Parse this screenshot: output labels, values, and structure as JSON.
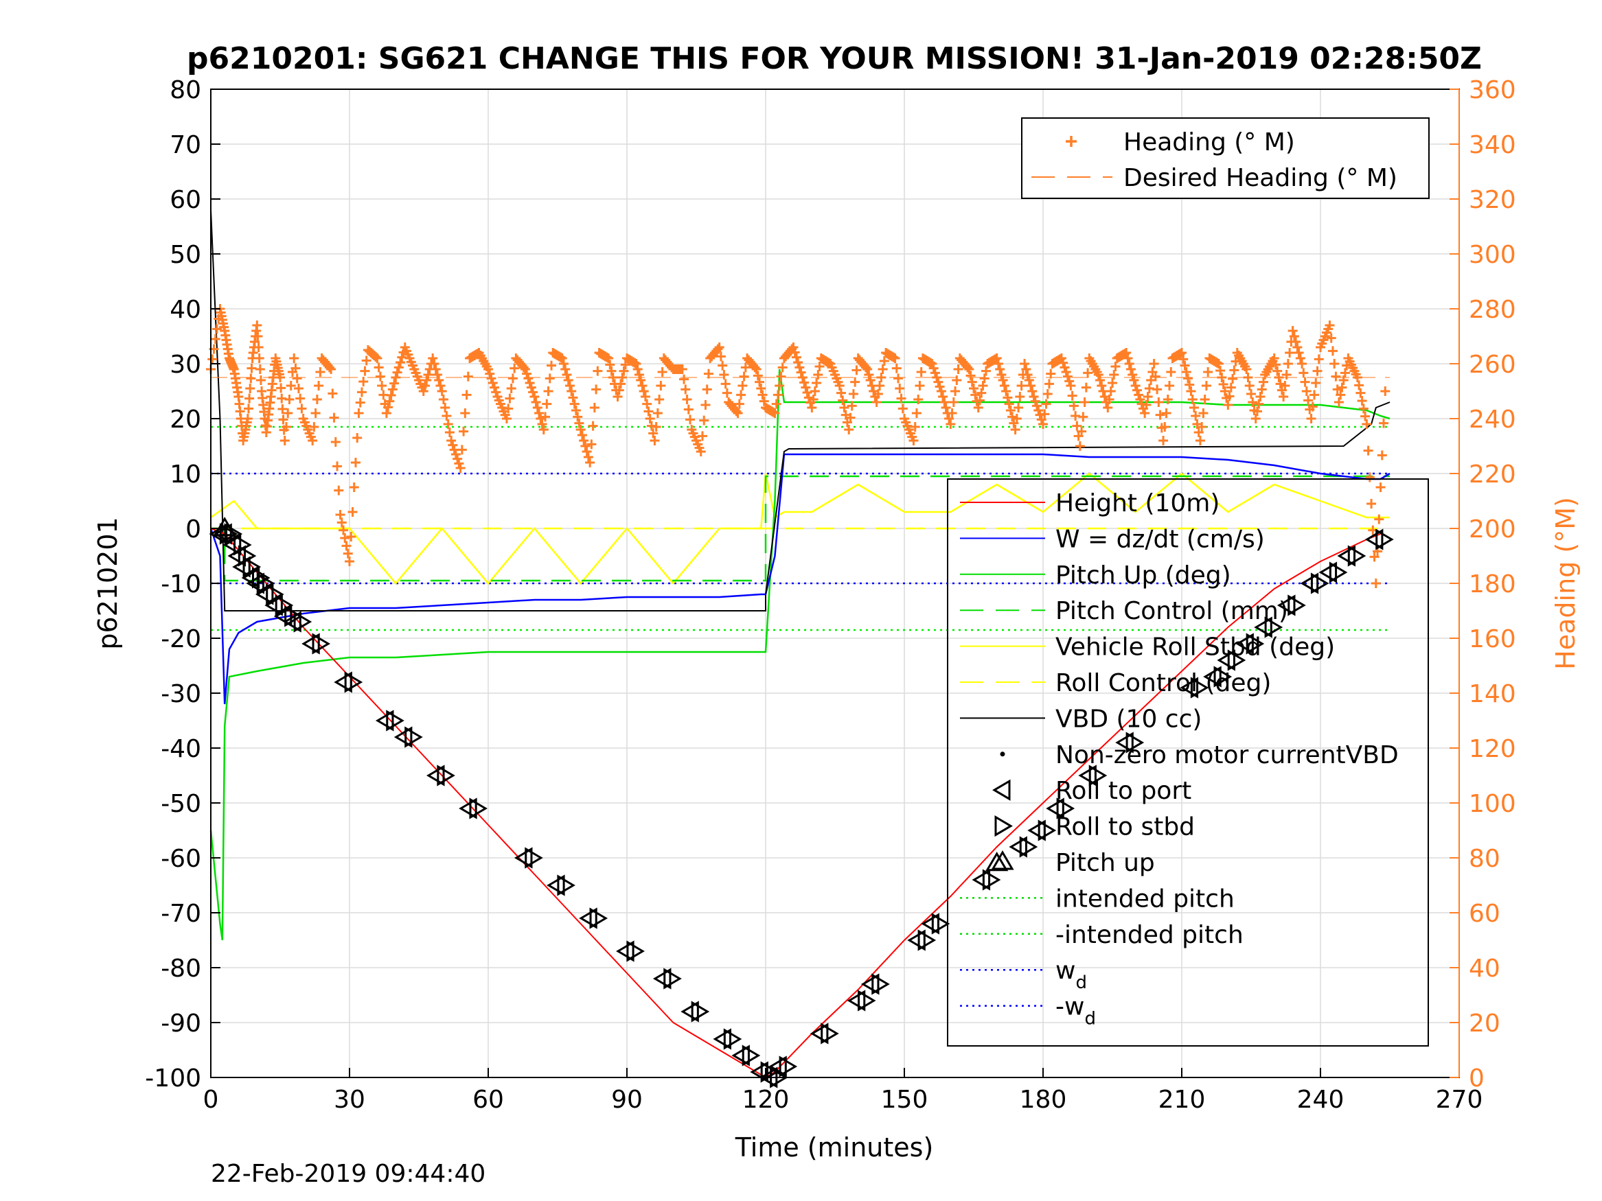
{
  "chart_data": {
    "type": "line",
    "title": "p6210201: SG621 CHANGE THIS FOR YOUR MISSION! 31-Jan-2019 02:28:50Z",
    "xlabel": "Time (minutes)",
    "ylabel": "p6210201",
    "ylabel_right": "Heading (°M)",
    "xlim": [
      0,
      270
    ],
    "ylim": [
      -100,
      80
    ],
    "ylim_right": [
      0,
      360
    ],
    "x_ticks": [
      "0",
      "30",
      "60",
      "90",
      "120",
      "150",
      "180",
      "210",
      "240",
      "270"
    ],
    "y_ticks": [
      "-100",
      "-90",
      "-80",
      "-70",
      "-60",
      "-50",
      "-40",
      "-30",
      "-20",
      "-10",
      "0",
      "10",
      "20",
      "30",
      "40",
      "50",
      "60",
      "70",
      "80"
    ],
    "y_ticks_right": [
      "0",
      "20",
      "40",
      "60",
      "80",
      "100",
      "120",
      "140",
      "160",
      "180",
      "200",
      "220",
      "240",
      "260",
      "280",
      "300",
      "320",
      "340",
      "360"
    ],
    "grid": true,
    "colors": {
      "height": "#ff0000",
      "w": "#0000ff",
      "pitch": "#00dd00",
      "roll": "#ffff00",
      "vbd": "#000000",
      "heading": "#ff7f27",
      "wd": "#0000ff"
    },
    "legend_heading": {
      "placement": "top-right",
      "entries": [
        {
          "label": "Heading (° M)",
          "color": "#ff7f27",
          "style": "plus"
        },
        {
          "label": "Desired Heading (° M)",
          "color": "#ff7f27",
          "style": "dash"
        }
      ]
    },
    "legend_main": {
      "placement": "right",
      "entries": [
        {
          "label": "Height (10m)",
          "color": "#ff0000",
          "style": "line"
        },
        {
          "label": "W = dz/dt (cm/s)",
          "color": "#0000ff",
          "style": "line"
        },
        {
          "label": "Pitch Up (deg)",
          "color": "#00dd00",
          "style": "line"
        },
        {
          "label": "Pitch Control (mm)",
          "color": "#00dd00",
          "style": "dash"
        },
        {
          "label": "Vehicle Roll Stbd (deg)",
          "color": "#ffff00",
          "style": "line"
        },
        {
          "label": "Roll Control (deg)",
          "color": "#ffff00",
          "style": "dash"
        },
        {
          "label": "VBD (10 cc)",
          "color": "#000000",
          "style": "line"
        },
        {
          "label": "Non-zero motor currentVBD",
          "color": "#000000",
          "style": "dot"
        },
        {
          "label": "Roll to port",
          "color": "#000000",
          "style": "tri-left"
        },
        {
          "label": "Roll to stbd",
          "color": "#000000",
          "style": "tri-right"
        },
        {
          "label": "Pitch up",
          "color": "#000000",
          "style": "tri-up"
        },
        {
          "label": "intended pitch",
          "color": "#00dd00",
          "style": "dot-line"
        },
        {
          "label": "-intended pitch",
          "color": "#00dd00",
          "style": "dot-line"
        },
        {
          "label": "w",
          "sub": "d",
          "color": "#0000ff",
          "style": "dot-line"
        },
        {
          "label": "-w",
          "sub": "d",
          "color": "#0000ff",
          "style": "dot-line"
        }
      ]
    },
    "series": [
      {
        "name": "Height (10m)",
        "x": [
          0,
          3,
          10,
          20,
          30,
          40,
          50,
          60,
          70,
          80,
          90,
          100,
          110,
          120,
          122,
          130,
          140,
          150,
          160,
          170,
          180,
          190,
          200,
          210,
          220,
          230,
          240,
          250,
          253
        ],
        "y": [
          0,
          -1,
          -8,
          -18,
          -27,
          -36,
          -45,
          -54,
          -63,
          -72,
          -81,
          -90,
          -95,
          -100,
          -99,
          -92,
          -84,
          -75,
          -67,
          -58,
          -50,
          -42,
          -34,
          -26,
          -18,
          -11,
          -6,
          -2,
          -1
        ]
      },
      {
        "name": "W = dz/dt (cm/s)",
        "x": [
          0,
          2,
          3,
          4,
          6,
          10,
          20,
          30,
          40,
          50,
          60,
          70,
          80,
          90,
          100,
          110,
          119,
          120,
          122,
          124,
          130,
          140,
          150,
          160,
          170,
          180,
          190,
          200,
          210,
          220,
          230,
          240,
          250,
          253,
          255
        ],
        "y": [
          0,
          -5,
          -32,
          -22,
          -19,
          -17,
          -15.5,
          -14.5,
          -14.5,
          -14,
          -13.5,
          -13,
          -13,
          -12.5,
          -12.5,
          -12.5,
          -12,
          -12,
          -5,
          13.5,
          13.5,
          13.5,
          13.5,
          13.5,
          13.5,
          13.5,
          13,
          13,
          13,
          12.5,
          11.5,
          10,
          9,
          9,
          10
        ]
      },
      {
        "name": "Pitch Up (deg)",
        "x": [
          0,
          2,
          2.5,
          3,
          4,
          10,
          20,
          30,
          40,
          50,
          60,
          70,
          80,
          90,
          100,
          110,
          119,
          120,
          122,
          123,
          124,
          130,
          140,
          150,
          160,
          170,
          180,
          190,
          200,
          210,
          220,
          230,
          240,
          250,
          253,
          255
        ],
        "y": [
          -55,
          -72,
          -75,
          -36,
          -27,
          -26,
          -24.5,
          -23.5,
          -23.5,
          -23,
          -22.5,
          -22.5,
          -22.5,
          -22.5,
          -22.5,
          -22.5,
          -22.5,
          -22.5,
          5,
          29,
          23,
          23,
          23,
          23,
          23,
          23,
          23,
          23,
          23,
          23,
          22.5,
          22.5,
          22.5,
          21.5,
          20.5,
          20
        ]
      },
      {
        "name": "Pitch Control (mm)",
        "x": [
          0,
          3,
          3,
          120,
          120,
          255
        ],
        "y": [
          0,
          0,
          -9.5,
          -9.5,
          9.5,
          9.5
        ]
      },
      {
        "name": "Vehicle Roll Stbd (deg)",
        "x": [
          0,
          5,
          10,
          20,
          30,
          40,
          50,
          60,
          70,
          80,
          90,
          100,
          110,
          119,
          120,
          122,
          124,
          130,
          140,
          150,
          160,
          170,
          180,
          190,
          200,
          210,
          220,
          230,
          240,
          250,
          255
        ],
        "y": [
          2,
          5,
          0,
          0,
          0,
          -10,
          0,
          -10,
          0,
          -10,
          0,
          -10,
          0,
          0,
          10,
          2,
          3,
          3,
          8,
          3,
          3,
          8,
          3,
          10,
          3,
          10,
          3,
          8,
          5,
          2,
          2
        ]
      },
      {
        "name": "Roll Control (deg)",
        "x": [
          0,
          255
        ],
        "y": [
          0,
          0
        ]
      },
      {
        "name": "VBD (10 cc)",
        "x": [
          0,
          2,
          3,
          3,
          120,
          120,
          124,
          125,
          245,
          248,
          251,
          252,
          255
        ],
        "y": [
          58,
          20,
          -15,
          -15,
          -15,
          -12,
          14,
          14.5,
          15,
          17,
          19,
          22,
          23
        ]
      },
      {
        "name": "intended pitch",
        "x": [
          0,
          255
        ],
        "y": [
          18.5,
          18.5
        ]
      },
      {
        "name": "-intended pitch",
        "x": [
          0,
          255
        ],
        "y": [
          -18.5,
          -18.5
        ]
      },
      {
        "name": "wd",
        "x": [
          0,
          255
        ],
        "y": [
          10,
          10
        ]
      },
      {
        "name": "-wd",
        "x": [
          0,
          255
        ],
        "y": [
          -10,
          -10
        ]
      }
    ],
    "heading_series": {
      "name": "Heading (° M)",
      "axis": "right",
      "x": [
        0,
        2,
        3,
        4,
        5,
        6,
        7,
        8,
        9,
        10,
        11,
        12,
        13,
        14,
        15,
        16,
        18,
        20,
        22,
        24,
        26,
        28,
        30,
        32,
        34,
        36,
        38,
        40,
        42,
        44,
        46,
        48,
        50,
        52,
        54,
        56,
        58,
        60,
        62,
        64,
        66,
        68,
        70,
        72,
        74,
        76,
        78,
        80,
        82,
        84,
        86,
        88,
        90,
        92,
        94,
        96,
        98,
        100,
        102,
        104,
        106,
        108,
        110,
        112,
        114,
        116,
        118,
        120,
        122,
        124,
        126,
        128,
        130,
        132,
        134,
        136,
        138,
        140,
        142,
        144,
        146,
        148,
        150,
        152,
        154,
        156,
        158,
        160,
        162,
        164,
        166,
        168,
        170,
        172,
        174,
        176,
        178,
        180,
        182,
        184,
        186,
        188,
        190,
        192,
        194,
        196,
        198,
        200,
        202,
        204,
        206,
        208,
        210,
        212,
        214,
        216,
        218,
        220,
        222,
        224,
        226,
        228,
        230,
        232,
        234,
        236,
        238,
        240,
        242,
        244,
        246,
        248,
        250,
        252,
        254
      ],
      "y": [
        258,
        280,
        272,
        262,
        258,
        248,
        232,
        240,
        262,
        274,
        250,
        235,
        248,
        262,
        255,
        232,
        262,
        240,
        232,
        262,
        258,
        205,
        188,
        242,
        265,
        262,
        242,
        255,
        266,
        258,
        250,
        262,
        250,
        232,
        222,
        262,
        264,
        258,
        248,
        240,
        262,
        258,
        248,
        236,
        264,
        262,
        250,
        236,
        224,
        264,
        262,
        248,
        262,
        260,
        248,
        232,
        262,
        258,
        258,
        236,
        228,
        262,
        266,
        246,
        242,
        262,
        258,
        244,
        242,
        262,
        266,
        255,
        244,
        262,
        260,
        252,
        236,
        262,
        258,
        246,
        264,
        262,
        240,
        232,
        262,
        260,
        250,
        238,
        262,
        258,
        244,
        260,
        262,
        250,
        236,
        260,
        248,
        238,
        260,
        262,
        252,
        230,
        262,
        256,
        244,
        262,
        264,
        252,
        242,
        260,
        232,
        262,
        264,
        250,
        232,
        262,
        260,
        245,
        264,
        258,
        240,
        256,
        262,
        248,
        272,
        260,
        240,
        266,
        274,
        246,
        262,
        255,
        238,
        180,
        250
      ]
    },
    "desired_heading": {
      "name": "Desired Heading (° M)",
      "axis": "right",
      "x": [
        0,
        255
      ],
      "y": [
        255,
        255
      ]
    },
    "markers": {
      "roll_to_port_stbd_pairs": {
        "x": [
          2,
          3,
          5,
          6,
          7,
          9,
          10,
          12,
          14,
          16,
          18,
          22,
          29,
          38,
          42,
          49,
          56,
          68,
          75,
          82,
          90,
          98,
          104,
          111,
          115,
          119,
          121,
          123,
          132,
          140,
          143,
          153,
          156,
          167,
          175,
          179,
          183,
          190,
          198,
          212,
          217,
          220,
          224,
          228,
          233,
          238,
          242,
          246,
          252
        ],
        "y": [
          -1,
          -1,
          -3,
          -5,
          -7,
          -9,
          -10,
          -12,
          -14,
          -16,
          -17,
          -21,
          -28,
          -35,
          -38,
          -45,
          -51,
          -60,
          -65,
          -71,
          -77,
          -82,
          -88,
          -93,
          -96,
          -99,
          -100,
          -98,
          -92,
          -86,
          -83,
          -75,
          -72,
          -64,
          -58,
          -55,
          -51,
          -45,
          -39,
          -29,
          -27,
          -24,
          -21,
          -18,
          -14,
          -10,
          -8,
          -5,
          -2
        ]
      },
      "pitch_up": {
        "x": [
          3,
          170
        ],
        "y": [
          0,
          -61
        ]
      }
    }
  },
  "footer": "22-Feb-2019 09:44:40"
}
